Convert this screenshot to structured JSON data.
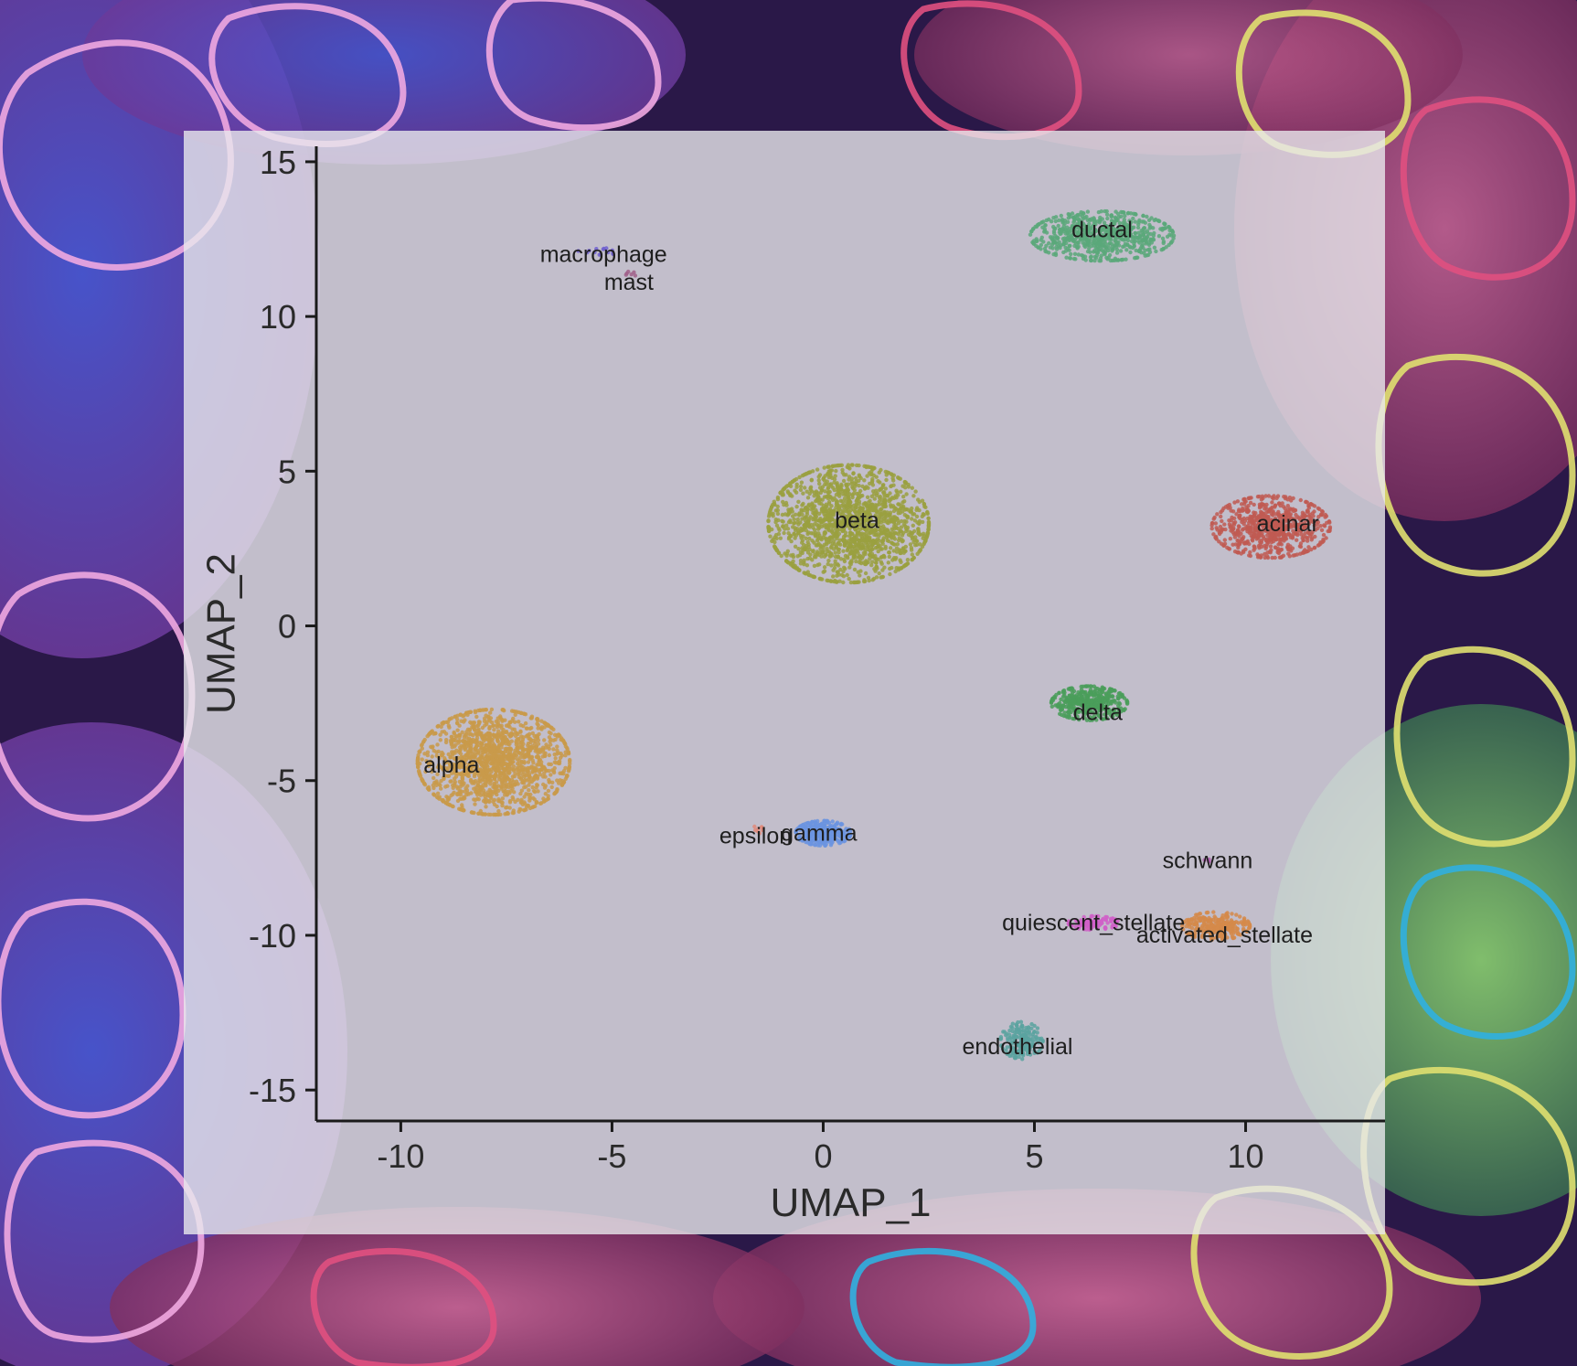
{
  "chart_data": {
    "type": "scatter",
    "title": "",
    "xlabel": "UMAP_1",
    "ylabel": "UMAP_2",
    "xlim": [
      -12,
      13.3
    ],
    "ylim": [
      -16,
      15.5
    ],
    "xticks": [
      -10,
      -5,
      0,
      5,
      10
    ],
    "yticks": [
      15,
      10,
      5,
      0,
      -5,
      -10,
      -15
    ],
    "xtick_labels": [
      "-10",
      "-5",
      "0",
      "5",
      "10"
    ],
    "ytick_labels": [
      "15",
      "10",
      "5",
      "0",
      "-5",
      "-10",
      "-15"
    ],
    "grid": false,
    "legend": "none",
    "series": [
      {
        "name": "alpha",
        "label_pos": [
          -8.8,
          -4.5
        ],
        "center": [
          -7.8,
          -4.4
        ],
        "spread": [
          1.8,
          1.7
        ],
        "count": 1500,
        "color": "#c99a4a"
      },
      {
        "name": "beta",
        "label_pos": [
          0.8,
          3.4
        ],
        "center": [
          0.6,
          3.3
        ],
        "spread": [
          1.9,
          1.9
        ],
        "count": 1600,
        "color": "#9aa040"
      },
      {
        "name": "ductal",
        "label_pos": [
          6.6,
          12.8
        ],
        "center": [
          6.6,
          12.6
        ],
        "spread": [
          1.7,
          0.8
        ],
        "count": 700,
        "color": "#5aa87a"
      },
      {
        "name": "acinar",
        "label_pos": [
          11.0,
          3.3
        ],
        "center": [
          10.6,
          3.2
        ],
        "spread": [
          1.4,
          1.0
        ],
        "count": 700,
        "color": "#c05a52"
      },
      {
        "name": "delta",
        "label_pos": [
          6.5,
          -2.8
        ],
        "center": [
          6.3,
          -2.5
        ],
        "spread": [
          0.9,
          0.55
        ],
        "count": 420,
        "color": "#4a9e5a"
      },
      {
        "name": "gamma",
        "label_pos": [
          -0.1,
          -6.7
        ],
        "center": [
          0.0,
          -6.7
        ],
        "spread": [
          0.65,
          0.4
        ],
        "count": 300,
        "color": "#6b94e0"
      },
      {
        "name": "epsilon",
        "label_pos": [
          -1.6,
          -6.8
        ],
        "center": [
          -1.5,
          -6.6
        ],
        "spread": [
          0.2,
          0.15
        ],
        "count": 8,
        "color": "#e08a7a"
      },
      {
        "name": "endothelial",
        "label_pos": [
          4.6,
          -13.6
        ],
        "center": [
          4.7,
          -13.4
        ],
        "spread": [
          0.5,
          0.6
        ],
        "count": 180,
        "color": "#5aa3a0"
      },
      {
        "name": "activated_stellate",
        "label_pos": [
          9.5,
          -10.0
        ],
        "center": [
          9.3,
          -9.7
        ],
        "spread": [
          0.8,
          0.45
        ],
        "count": 260,
        "color": "#d58a4a"
      },
      {
        "name": "quiescent_stellate",
        "label_pos": [
          6.4,
          -9.6
        ],
        "center": [
          6.4,
          -9.6
        ],
        "spread": [
          0.6,
          0.22
        ],
        "count": 120,
        "color": "#d060c8"
      },
      {
        "name": "schwann",
        "label_pos": [
          9.1,
          -7.6
        ],
        "center": [
          9.1,
          -7.6
        ],
        "spread": [
          0.1,
          0.1
        ],
        "count": 4,
        "color": "#b060b0"
      },
      {
        "name": "macrophage",
        "label_pos": [
          -5.2,
          12.0
        ],
        "center": [
          -5.3,
          12.1
        ],
        "spread": [
          0.5,
          0.2
        ],
        "count": 14,
        "color": "#7060d0"
      },
      {
        "name": "mast",
        "label_pos": [
          -4.6,
          11.1
        ],
        "center": [
          -4.6,
          11.4
        ],
        "spread": [
          0.2,
          0.12
        ],
        "count": 6,
        "color": "#a0608a"
      }
    ]
  }
}
